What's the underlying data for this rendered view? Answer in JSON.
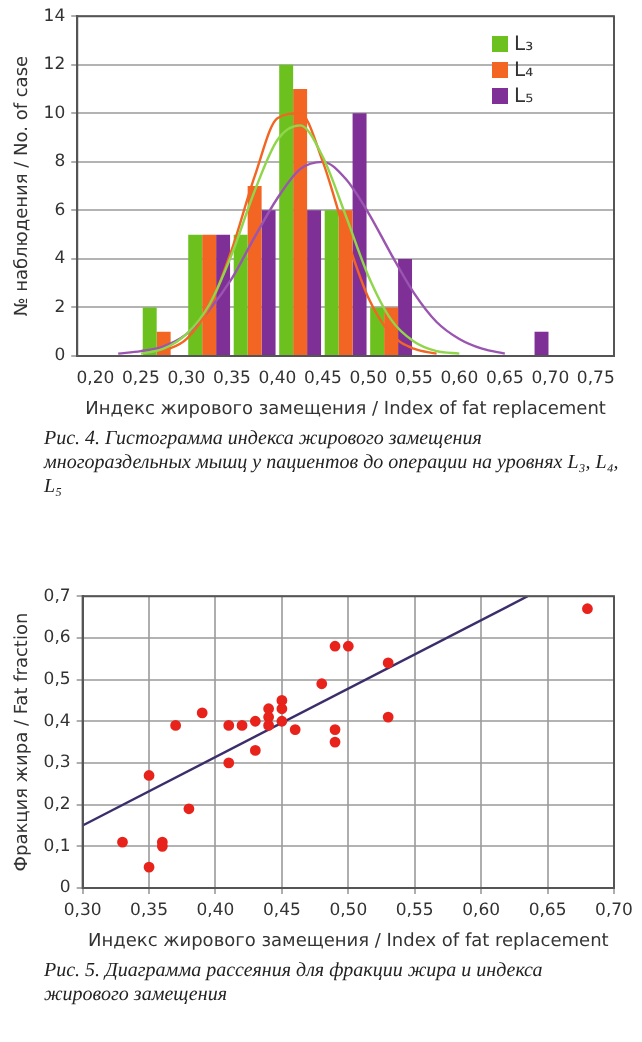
{
  "chart_data": [
    {
      "type": "histogram",
      "xlabel": "Индекс жирового замещения / Index of fat replacement",
      "ylabel": "№ наблюдения / No. of case",
      "bins": [
        0.2,
        0.25,
        0.3,
        0.35,
        0.4,
        0.45,
        0.5,
        0.55,
        0.6,
        0.65,
        0.7,
        0.75
      ],
      "series": [
        {
          "name": "L₃",
          "color": "#6cc11f",
          "values": [
            0,
            2,
            5,
            5,
            12,
            6,
            2,
            0,
            0,
            0,
            0
          ]
        },
        {
          "name": "L₄",
          "color": "#f26522",
          "values": [
            0,
            1,
            5,
            7,
            11,
            6,
            2,
            0,
            0,
            0,
            0
          ]
        },
        {
          "name": "L₅",
          "color": "#7f3096",
          "values": [
            0,
            0,
            5,
            6,
            6,
            10,
            4,
            0,
            0,
            1,
            0
          ]
        },
        {
          "type": "line",
          "color": "#8fd64a",
          "x": [
            0.25,
            0.275,
            0.3,
            0.325,
            0.35,
            0.375,
            0.4,
            0.425,
            0.45,
            0.475,
            0.5,
            0.525,
            0.55,
            0.575,
            0.6
          ],
          "values": [
            0.1,
            0.3,
            0.9,
            2.1,
            4.2,
            6.8,
            8.9,
            9.5,
            8.2,
            5.8,
            3.3,
            1.5,
            0.6,
            0.2,
            0.1
          ]
        },
        {
          "type": "line",
          "color": "#f26522",
          "x": [
            0.275,
            0.3,
            0.325,
            0.35,
            0.375,
            0.4,
            0.425,
            0.45,
            0.475,
            0.5,
            0.525,
            0.55,
            0.575
          ],
          "values": [
            0.2,
            0.7,
            2,
            4.4,
            7.4,
            9.8,
            10,
            8,
            5,
            2.4,
            0.9,
            0.3,
            0.1
          ]
        },
        {
          "type": "line",
          "color": "#9a55b0",
          "x": [
            0.225,
            0.25,
            0.275,
            0.3,
            0.325,
            0.35,
            0.375,
            0.4,
            0.425,
            0.45,
            0.475,
            0.5,
            0.525,
            0.55,
            0.575,
            0.6,
            0.625,
            0.65
          ],
          "values": [
            0.1,
            0.2,
            0.4,
            0.9,
            1.9,
            3.2,
            4.9,
            6.5,
            7.7,
            8,
            7.3,
            5.9,
            4.2,
            2.6,
            1.4,
            0.7,
            0.3,
            0.1
          ]
        }
      ],
      "xlim": [
        0.18,
        0.77
      ],
      "xticks": [
        {
          "value": 0.2,
          "label": "0,20"
        },
        {
          "value": 0.25,
          "label": "0,25"
        },
        {
          "value": 0.3,
          "label": "0,30"
        },
        {
          "value": 0.35,
          "label": "0,35"
        },
        {
          "value": 0.4,
          "label": "0,40"
        },
        {
          "value": 0.45,
          "label": "0,45"
        },
        {
          "value": 0.5,
          "label": "0,50"
        },
        {
          "value": 0.55,
          "label": "0,55"
        },
        {
          "value": 0.6,
          "label": "0,60"
        },
        {
          "value": 0.65,
          "label": "0,65"
        },
        {
          "value": 0.7,
          "label": "0,70"
        },
        {
          "value": 0.75,
          "label": "0,75"
        }
      ],
      "ylim": [
        0,
        14
      ],
      "yticks": [
        0,
        2,
        4,
        6,
        8,
        10,
        12,
        14
      ],
      "grid": "y",
      "legend": "top right",
      "marker": "none",
      "annotations": [
        "Рис. 4. Гистограмма индекса жирового замещения многораздельных мышц у пациентов до операции на уровнях L₃, L₄, L₅"
      ]
    },
    {
      "type": "scatter",
      "xlabel": "Индекс жирового замещения / Index of fat replacement",
      "ylabel": "Фракция жира / Fat fraction",
      "series": [
        {
          "color": "#e8231c",
          "marker": "circle",
          "x": [
            0.33,
            0.35,
            0.35,
            0.36,
            0.36,
            0.37,
            0.38,
            0.39,
            0.41,
            0.41,
            0.42,
            0.43,
            0.43,
            0.44,
            0.44,
            0.44,
            0.45,
            0.45,
            0.45,
            0.46,
            0.48,
            0.49,
            0.49,
            0.49,
            0.5,
            0.53,
            0.53,
            0.68
          ],
          "values": [
            0.11,
            0.27,
            0.05,
            0.11,
            0.1,
            0.39,
            0.19,
            0.42,
            0.39,
            0.3,
            0.39,
            0.4,
            0.33,
            0.43,
            0.41,
            0.39,
            0.45,
            0.43,
            0.4,
            0.38,
            0.49,
            0.58,
            0.38,
            0.35,
            0.58,
            0.54,
            0.41,
            0.67
          ]
        },
        {
          "type": "line",
          "color": "#3b2e6b",
          "x": [
            0.3,
            0.635
          ],
          "values": [
            0.15,
            0.7
          ]
        }
      ],
      "xlim": [
        0.3,
        0.7
      ],
      "xticks": [
        {
          "value": 0.3,
          "label": "0,30"
        },
        {
          "value": 0.35,
          "label": "0,35"
        },
        {
          "value": 0.4,
          "label": "0,40"
        },
        {
          "value": 0.45,
          "label": "0,45"
        },
        {
          "value": 0.5,
          "label": "0,50"
        },
        {
          "value": 0.55,
          "label": "0,55"
        },
        {
          "value": 0.6,
          "label": "0,60"
        },
        {
          "value": 0.65,
          "label": "0,65"
        },
        {
          "value": 0.7,
          "label": "0,70"
        }
      ],
      "ylim": [
        0,
        0.7
      ],
      "yticks": [
        0,
        {
          "value": 0.1,
          "label": "0,1"
        },
        {
          "value": 0.2,
          "label": "0,2"
        },
        {
          "value": 0.3,
          "label": "0,3"
        },
        {
          "value": 0.4,
          "label": "0,4"
        },
        {
          "value": 0.5,
          "label": "0,5"
        },
        {
          "value": 0.6,
          "label": "0,6"
        },
        {
          "value": 0.7,
          "label": "0,7"
        }
      ],
      "grid": true,
      "annotations": [
        "Рис. 5. Диаграмма рассеяния для фракции жира и индекса жирового замещения"
      ]
    }
  ]
}
